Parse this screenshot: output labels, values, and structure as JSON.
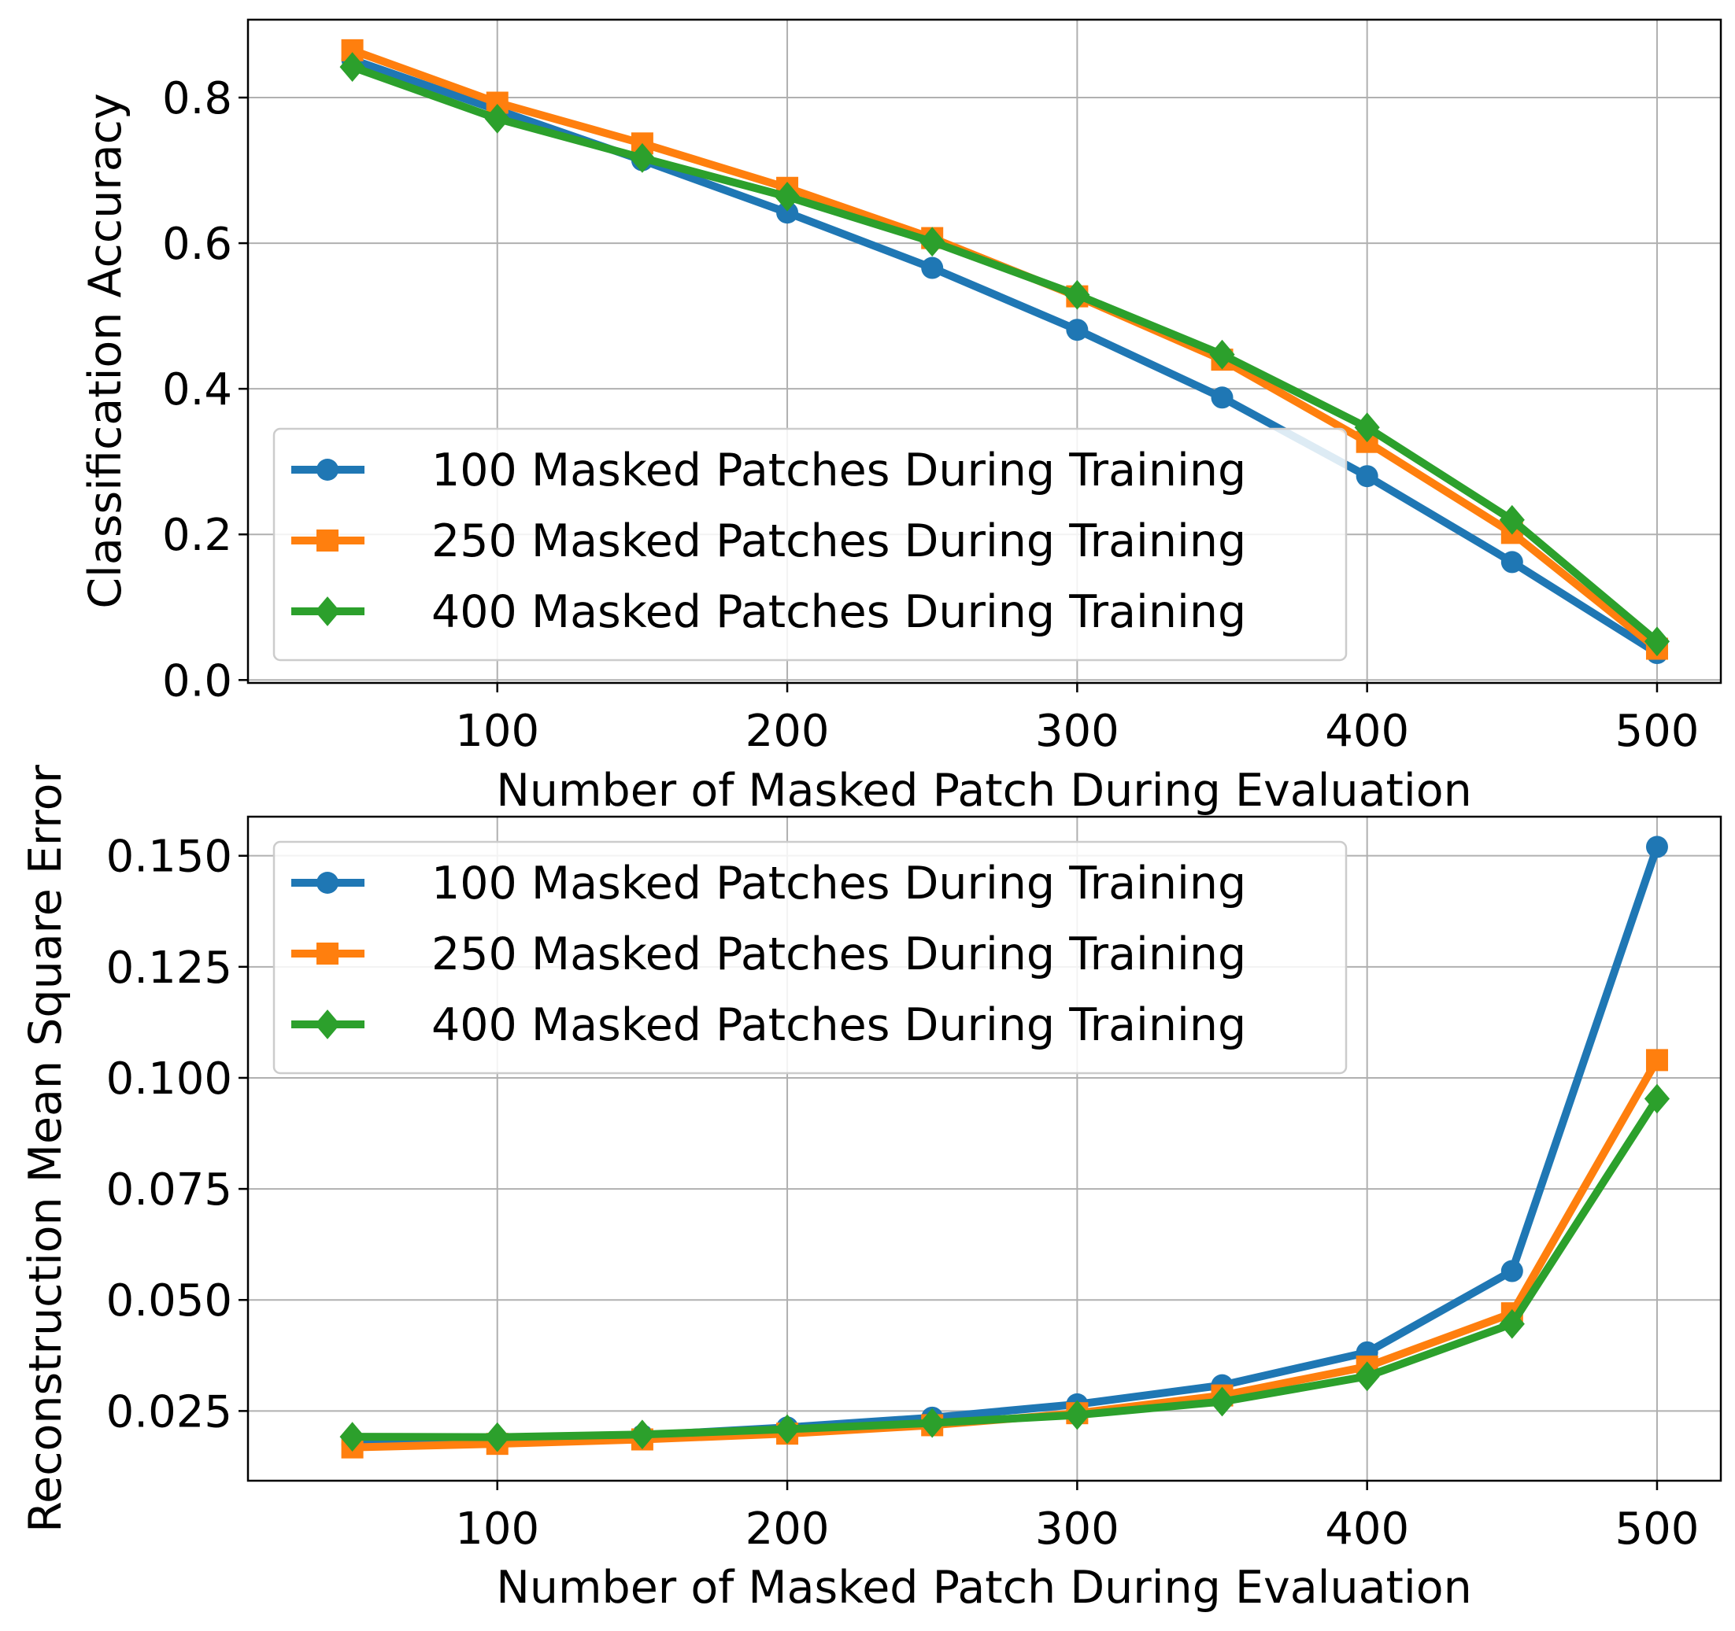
{
  "chart_data": [
    {
      "type": "line",
      "xlabel": "Number of Masked Patch During Evaluation",
      "ylabel": "Classification Accuracy",
      "x": [
        50,
        100,
        150,
        200,
        250,
        300,
        350,
        400,
        450,
        500
      ],
      "xlim": [
        14,
        522
      ],
      "ylim": [
        -0.004,
        0.907
      ],
      "xticks": [
        100,
        200,
        300,
        400,
        500
      ],
      "xtick_labels": [
        "100",
        "200",
        "300",
        "400",
        "500"
      ],
      "yticks": [
        0.0,
        0.2,
        0.4,
        0.6,
        0.8
      ],
      "ytick_labels": [
        "0.0",
        "0.2",
        "0.4",
        "0.6",
        "0.8"
      ],
      "grid": true,
      "legend_position": "lower-left",
      "series": [
        {
          "name": "100 Masked Patches During Training",
          "color": "#1f77b4",
          "marker": "circle",
          "values": [
            0.852,
            0.783,
            0.714,
            0.642,
            0.566,
            0.481,
            0.388,
            0.28,
            0.162,
            0.037
          ]
        },
        {
          "name": "250 Masked Patches During Training",
          "color": "#ff7f0e",
          "marker": "square",
          "values": [
            0.865,
            0.793,
            0.737,
            0.676,
            0.607,
            0.527,
            0.44,
            0.327,
            0.202,
            0.043
          ]
        },
        {
          "name": "400 Masked Patches During Training",
          "color": "#2ca02c",
          "marker": "diamond",
          "values": [
            0.842,
            0.771,
            0.717,
            0.664,
            0.602,
            0.529,
            0.447,
            0.347,
            0.22,
            0.053
          ]
        }
      ]
    },
    {
      "type": "line",
      "xlabel": "Number of Masked Patch During Evaluation",
      "ylabel": "Reconstruction Mean Square Error",
      "x": [
        50,
        100,
        150,
        200,
        250,
        300,
        350,
        400,
        450,
        500
      ],
      "xlim": [
        14,
        522
      ],
      "ylim": [
        0.0093,
        0.1588
      ],
      "xticks": [
        100,
        200,
        300,
        400,
        500
      ],
      "xtick_labels": [
        "100",
        "200",
        "300",
        "400",
        "500"
      ],
      "yticks": [
        0.025,
        0.05,
        0.075,
        0.1,
        0.125,
        0.15
      ],
      "ytick_labels": [
        "0.025",
        "0.050",
        "0.075",
        "0.100",
        "0.125",
        "0.150"
      ],
      "grid": true,
      "legend_position": "upper-left",
      "series": [
        {
          "name": "100 Masked Patches During Training",
          "color": "#1f77b4",
          "marker": "circle",
          "values": [
            0.0175,
            0.0185,
            0.0195,
            0.0213,
            0.0235,
            0.0265,
            0.0308,
            0.0382,
            0.0565,
            0.152
          ]
        },
        {
          "name": "250 Masked Patches During Training",
          "color": "#ff7f0e",
          "marker": "square",
          "values": [
            0.0168,
            0.0176,
            0.0186,
            0.0199,
            0.0218,
            0.0245,
            0.0285,
            0.035,
            0.047,
            0.104
          ]
        },
        {
          "name": "400 Masked Patches During Training",
          "color": "#2ca02c",
          "marker": "diamond",
          "values": [
            0.0192,
            0.0191,
            0.0197,
            0.0209,
            0.0223,
            0.0241,
            0.0271,
            0.0328,
            0.0446,
            0.0953
          ]
        }
      ]
    }
  ]
}
